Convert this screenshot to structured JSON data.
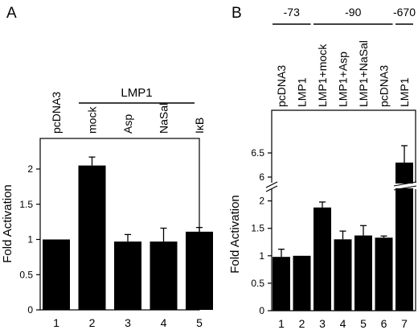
{
  "panels": [
    {
      "letter": "A",
      "ylabel": "Fold Activation",
      "yticks": [
        "0",
        "0.5",
        "1",
        "1.5",
        "2"
      ],
      "group_label": "LMP1",
      "lane_labels": [
        "pcDNA3",
        "mock",
        "Asp",
        "NaSal",
        "IκB"
      ],
      "lane_numbers": [
        "1",
        "2",
        "3",
        "4",
        "5"
      ]
    },
    {
      "letter": "B",
      "ylabel": "Fold Activation",
      "yticks_lower": [
        "0",
        "0.5",
        "1",
        "1.5",
        "2"
      ],
      "yticks_upper": [
        "6",
        "6.5"
      ],
      "promoter_labels": [
        "-73",
        "-90",
        "-670"
      ],
      "lane_labels": [
        "pcDNA3",
        "LMP1",
        "LMP1+mock",
        "LMP1+Asp",
        "LMP1+NaSal",
        "pcDNA3",
        "LMP1"
      ],
      "lane_numbers": [
        "1",
        "2",
        "3",
        "4",
        "5",
        "6",
        "7"
      ]
    }
  ],
  "chart_data": [
    {
      "type": "bar",
      "title": "A",
      "ylabel": "Fold Activation",
      "categories": [
        "pcDNA3",
        "mock",
        "Asp",
        "NaSal",
        "IκB"
      ],
      "x": [
        "1",
        "2",
        "3",
        "4",
        "5"
      ],
      "values": [
        1.0,
        2.05,
        0.97,
        0.97,
        1.11
      ],
      "errors": [
        0.0,
        0.12,
        0.1,
        0.19,
        0.06
      ],
      "ylim": [
        0,
        2.25
      ],
      "grid": false
    },
    {
      "type": "bar",
      "title": "B",
      "ylabel": "Fold Activation",
      "categories": [
        "pcDNA3",
        "LMP1",
        "LMP1+mock",
        "LMP1+Asp",
        "LMP1+NaSal",
        "pcDNA3",
        "LMP1"
      ],
      "x": [
        "1",
        "2",
        "3",
        "4",
        "5",
        "6",
        "7"
      ],
      "values": [
        0.98,
        1.0,
        1.88,
        1.3,
        1.37,
        1.33,
        6.3
      ],
      "errors": [
        0.14,
        0.0,
        0.1,
        0.15,
        0.18,
        0.03,
        0.35
      ],
      "ylim": [
        0,
        6.75
      ],
      "axis_break": [
        2.2,
        5.8
      ],
      "grid": false
    }
  ]
}
